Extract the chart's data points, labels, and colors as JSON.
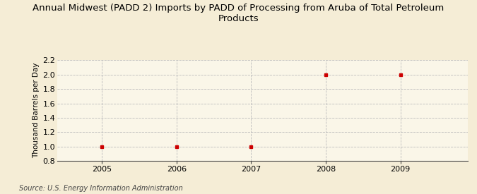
{
  "title": "Annual Midwest (PADD 2) Imports by PADD of Processing from Aruba of Total Petroleum\nProducts",
  "ylabel": "Thousand Barrels per Day",
  "source": "Source: U.S. Energy Information Administration",
  "x_values": [
    2005,
    2006,
    2007,
    2008,
    2009
  ],
  "y_values": [
    1.0,
    1.0,
    1.0,
    2.0,
    2.0
  ],
  "xlim": [
    2004.4,
    2009.9
  ],
  "ylim": [
    0.8,
    2.2
  ],
  "yticks": [
    0.8,
    1.0,
    1.2,
    1.4,
    1.6,
    1.8,
    2.0,
    2.2
  ],
  "xticks": [
    2005,
    2006,
    2007,
    2008,
    2009
  ],
  "background_color": "#F5EDD6",
  "plot_bg_color": "#FAF6E8",
  "marker_color": "#CC0000",
  "grid_color": "#BBBBBB",
  "title_fontsize": 9.5,
  "label_fontsize": 7.5,
  "tick_fontsize": 8,
  "source_fontsize": 7
}
